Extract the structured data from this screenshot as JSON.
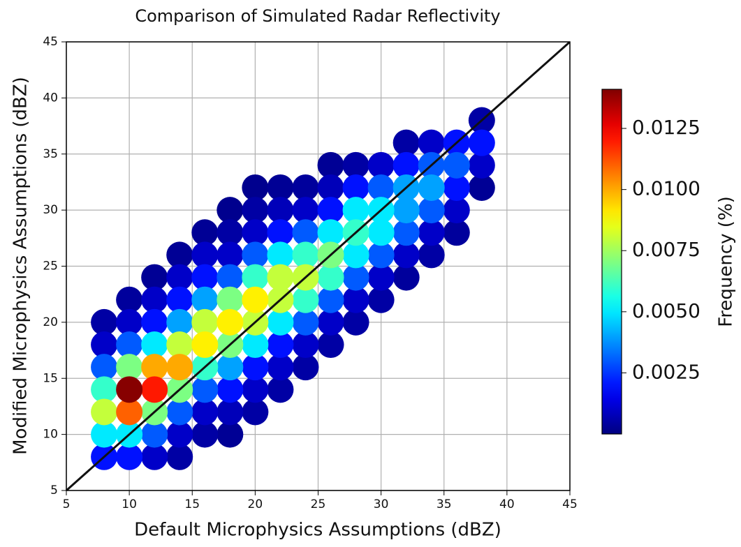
{
  "chart_data": {
    "type": "density_scatter",
    "title": "Comparison of Simulated Radar Reflectivity",
    "x_label": "Default Microphysics Assumptions (dBZ)",
    "y_label": "Modified Microphysics Assumptions (dBZ)",
    "colorbar_label": "Frequency (%)",
    "colormap": "jet",
    "xlim": [
      5,
      45
    ],
    "ylim": [
      5,
      45
    ],
    "xticks": [
      5,
      10,
      15,
      20,
      25,
      30,
      35,
      40,
      45
    ],
    "yticks": [
      5,
      10,
      15,
      20,
      25,
      30,
      35,
      40,
      45
    ],
    "grid": true,
    "clim": [
      0,
      0.0141
    ],
    "cticks": [
      0.0025,
      {
        "value": 0.005,
        "label": "0.0050"
      },
      0.0075,
      {
        "value": 0.01,
        "label": "0.0100"
      },
      0.0125
    ],
    "reference_line": {
      "x": [
        5,
        45
      ],
      "y": [
        5,
        45
      ],
      "color": "#111111"
    },
    "x": [
      8,
      8,
      8,
      8,
      8,
      8,
      8,
      10,
      10,
      10,
      10,
      10,
      10,
      10,
      10,
      12,
      12,
      12,
      12,
      12,
      12,
      12,
      12,
      12,
      14,
      14,
      14,
      14,
      14,
      14,
      14,
      14,
      14,
      14,
      16,
      16,
      16,
      16,
      16,
      16,
      16,
      16,
      16,
      16,
      18,
      18,
      18,
      18,
      18,
      18,
      18,
      18,
      18,
      18,
      18,
      20,
      20,
      20,
      20,
      20,
      20,
      20,
      20,
      20,
      20,
      20,
      22,
      22,
      22,
      22,
      22,
      22,
      22,
      22,
      22,
      22,
      24,
      24,
      24,
      24,
      24,
      24,
      24,
      24,
      24,
      26,
      26,
      26,
      26,
      26,
      26,
      26,
      26,
      26,
      28,
      28,
      28,
      28,
      28,
      28,
      28,
      28,
      30,
      30,
      30,
      30,
      30,
      30,
      30,
      32,
      32,
      32,
      32,
      32,
      32,
      32,
      34,
      34,
      34,
      34,
      34,
      34,
      36,
      36,
      36,
      36,
      36,
      38,
      38,
      38,
      38
    ],
    "y": [
      8,
      10,
      12,
      14,
      16,
      18,
      20,
      8,
      10,
      12,
      14,
      16,
      18,
      20,
      22,
      8,
      10,
      12,
      14,
      16,
      18,
      20,
      22,
      24,
      8,
      10,
      12,
      14,
      16,
      18,
      20,
      22,
      24,
      26,
      10,
      12,
      14,
      16,
      18,
      20,
      22,
      24,
      26,
      28,
      10,
      12,
      14,
      16,
      18,
      20,
      22,
      24,
      26,
      28,
      30,
      12,
      14,
      16,
      18,
      20,
      22,
      24,
      26,
      28,
      30,
      32,
      14,
      16,
      18,
      20,
      22,
      24,
      26,
      28,
      30,
      32,
      16,
      18,
      20,
      22,
      24,
      26,
      28,
      30,
      32,
      18,
      20,
      22,
      24,
      26,
      28,
      30,
      32,
      34,
      20,
      22,
      24,
      26,
      28,
      30,
      32,
      34,
      22,
      24,
      26,
      28,
      30,
      32,
      34,
      24,
      26,
      28,
      30,
      32,
      34,
      36,
      26,
      28,
      30,
      32,
      34,
      36,
      28,
      30,
      32,
      34,
      36,
      32,
      34,
      36,
      38
    ],
    "frequency": [
      0.002,
      0.005,
      0.008,
      0.006,
      0.003,
      0.001,
      0.0005,
      0.002,
      0.005,
      0.011,
      0.014,
      0.007,
      0.003,
      0.001,
      0.0004,
      0.001,
      0.003,
      0.007,
      0.012,
      0.01,
      0.005,
      0.002,
      0.001,
      0.0003,
      0.0005,
      0.001,
      0.003,
      0.007,
      0.01,
      0.008,
      0.004,
      0.002,
      0.001,
      0.0003,
      0.0005,
      0.001,
      0.003,
      0.006,
      0.009,
      0.008,
      0.004,
      0.002,
      0.001,
      0.0003,
      0.0003,
      0.0008,
      0.002,
      0.004,
      0.007,
      0.009,
      0.007,
      0.003,
      0.001,
      0.0005,
      0.0002,
      0.0005,
      0.001,
      0.002,
      0.005,
      0.008,
      0.009,
      0.006,
      0.003,
      0.001,
      0.0005,
      0.0002,
      0.0005,
      0.001,
      0.002,
      0.005,
      0.008,
      0.008,
      0.005,
      0.002,
      0.0008,
      0.0003,
      0.0005,
      0.001,
      0.003,
      0.006,
      0.008,
      0.006,
      0.003,
      0.001,
      0.0004,
      0.0005,
      0.001,
      0.003,
      0.006,
      0.007,
      0.005,
      0.002,
      0.0008,
      0.0003,
      0.0005,
      0.001,
      0.003,
      0.005,
      0.006,
      0.005,
      0.002,
      0.0005,
      0.0005,
      0.001,
      0.003,
      0.005,
      0.005,
      0.003,
      0.001,
      0.0004,
      0.001,
      0.003,
      0.004,
      0.004,
      0.002,
      0.0005,
      0.0005,
      0.001,
      0.003,
      0.004,
      0.003,
      0.001,
      0.0004,
      0.001,
      0.002,
      0.003,
      0.002,
      0.0003,
      0.001,
      0.002,
      0.0005
    ]
  }
}
